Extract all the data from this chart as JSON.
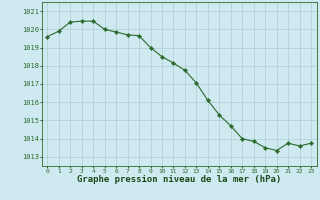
{
  "x": [
    0,
    1,
    2,
    3,
    4,
    5,
    6,
    7,
    8,
    9,
    10,
    11,
    12,
    13,
    14,
    15,
    16,
    17,
    18,
    19,
    20,
    21,
    22,
    23
  ],
  "y": [
    1019.6,
    1019.9,
    1020.4,
    1020.45,
    1020.45,
    1020.0,
    1019.85,
    1019.7,
    1019.65,
    1019.0,
    1018.5,
    1018.15,
    1017.75,
    1017.05,
    1016.1,
    1015.3,
    1014.7,
    1014.0,
    1013.85,
    1013.5,
    1013.35,
    1013.75,
    1013.6,
    1013.75
  ],
  "line_color": "#2d6a2d",
  "marker": "D",
  "marker_size": 2.2,
  "bg_color": "#ceeaf0",
  "grid_color": "#b0ccd4",
  "xlabel": "Graphe pression niveau de la mer (hPa)",
  "xlabel_fontsize": 6.5,
  "xlabel_color": "#1a4a1a",
  "ytick_labels": [
    "1013",
    "1014",
    "1015",
    "1016",
    "1017",
    "1018",
    "1019",
    "1020",
    "1021"
  ],
  "ytick_values": [
    1013,
    1014,
    1015,
    1016,
    1017,
    1018,
    1019,
    1020,
    1021
  ],
  "ylim": [
    1012.5,
    1021.5
  ],
  "xlim": [
    -0.5,
    23.5
  ],
  "xtick_labels": [
    "0",
    "1",
    "2",
    "3",
    "4",
    "5",
    "6",
    "7",
    "8",
    "9",
    "10",
    "11",
    "12",
    "13",
    "14",
    "15",
    "16",
    "17",
    "18",
    "19",
    "20",
    "21",
    "22",
    "23"
  ],
  "tick_color": "#2d6a2d",
  "ytick_fontsize": 5.0,
  "xtick_fontsize": 4.5,
  "spine_color": "#2d6a2d"
}
